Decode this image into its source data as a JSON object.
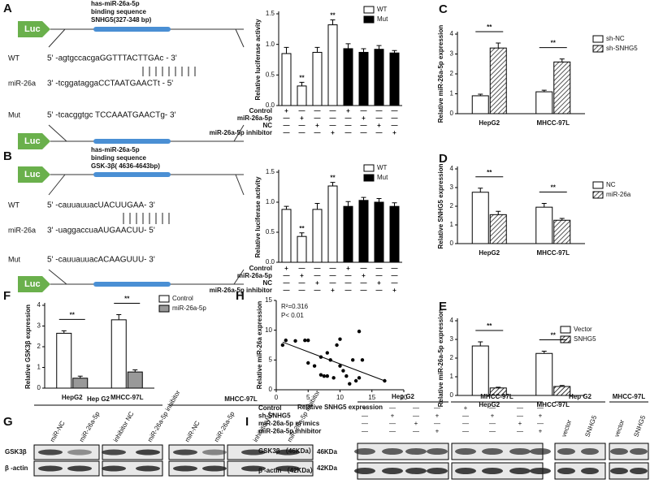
{
  "panel_labels": [
    "A",
    "B",
    "C",
    "D",
    "E",
    "F",
    "G",
    "H",
    "I"
  ],
  "diagrams": [
    {
      "luc": [
        "Luc",
        "Luc"
      ],
      "title_lines": [
        "has-miR-26a-5p",
        "binding sequence",
        "SNHG5(327-348 bp)"
      ],
      "rows": [
        {
          "name": "WT",
          "seq": "5' -agtgccacgaGGTTTACTTGAc - 3'"
        },
        {
          "name": "miR-26a",
          "seq": "3' -tcggataggaCCTAATGAACTt - 5'"
        },
        {
          "name": "Mut",
          "seq": "5' -tcacggtgc TCCAAATGAACTg- 3'"
        }
      ]
    },
    {
      "luc": [
        "Luc",
        "Luc"
      ],
      "title_lines": [
        "has-miR-26a-5p",
        "binding sequence",
        "GSK-3β( 4636-4643bp)"
      ],
      "rows": [
        {
          "name": "WT",
          "seq": "5' -cauuauuacUACUUGAA- 3'"
        },
        {
          "name": "miR-26a",
          "seq": "3' -uaggaccuaAUGAACUU- 5'"
        },
        {
          "name": "Mut",
          "seq": "5' -cauuauuacACAAGUUU- 3'"
        }
      ]
    }
  ],
  "chart_data": [
    {
      "type": "bar",
      "ylabel": "Relative luciferase activity",
      "categories": [
        null,
        null,
        null,
        null,
        null,
        null,
        null,
        null
      ],
      "series": [
        {
          "name": "WT",
          "color": "#ffffff",
          "values": [
            0.85,
            0.32,
            0.87,
            1.32,
            null,
            null,
            null,
            null
          ],
          "errors": [
            0.1,
            0.06,
            0.08,
            0.08,
            null,
            null,
            null,
            null
          ]
        },
        {
          "name": "Mut",
          "color": "#000000",
          "values": [
            null,
            null,
            null,
            null,
            0.93,
            0.87,
            0.92,
            0.86
          ],
          "errors": [
            null,
            null,
            null,
            null,
            0.08,
            0.06,
            0.06,
            0.04
          ]
        }
      ],
      "ylim": [
        0,
        1.5
      ],
      "yticks": [
        {
          "value": 0,
          "label": "0.0"
        },
        {
          "value": 0.5,
          "label": "0.5"
        },
        {
          "value": 1,
          "label": "1.0"
        },
        {
          "value": 1.5,
          "label": "1.5"
        }
      ],
      "annotations": [
        "**",
        "**"
      ],
      "conditions": [
        {
          "name": "Control",
          "signs": [
            "+",
            "—",
            "—",
            "—",
            "+",
            "—",
            "—",
            "—"
          ]
        },
        {
          "name": "miR-26a-5p",
          "signs": [
            "—",
            "+",
            "—",
            "—",
            "—",
            "+",
            "—",
            "—"
          ]
        },
        {
          "name": "NC",
          "signs": [
            "—",
            "—",
            "+",
            "—",
            "—",
            "—",
            "+",
            "—"
          ]
        },
        {
          "name": "miR-26a-5p inhibitor",
          "signs": [
            "—",
            "—",
            "—",
            "+",
            "—",
            "—",
            "—",
            "+"
          ]
        }
      ]
    },
    {
      "type": "bar",
      "ylabel": "Relative luciferase activity",
      "categories": [
        null,
        null,
        null,
        null,
        null,
        null,
        null,
        null
      ],
      "series": [
        {
          "name": "WT",
          "color": "#ffffff",
          "values": [
            0.88,
            0.43,
            0.88,
            1.27,
            null,
            null,
            null,
            null
          ],
          "errors": [
            0.05,
            0.06,
            0.1,
            0.06,
            null,
            null,
            null,
            null
          ]
        },
        {
          "name": "Mut",
          "color": "#000000",
          "values": [
            null,
            null,
            null,
            null,
            0.93,
            1.03,
            1.0,
            0.93
          ],
          "errors": [
            null,
            null,
            null,
            null,
            0.08,
            0.05,
            0.06,
            0.06
          ]
        }
      ],
      "ylim": [
        0,
        1.5
      ],
      "yticks": [
        {
          "value": 0,
          "label": "0.0"
        },
        {
          "value": 0.5,
          "label": "0.5"
        },
        {
          "value": 1,
          "label": "1.0"
        },
        {
          "value": 1.5,
          "label": "1.5"
        }
      ],
      "annotations": [
        "**",
        "**"
      ],
      "conditions": [
        {
          "name": "Control",
          "signs": [
            "+",
            "—",
            "—",
            "—",
            "+",
            "—",
            "—",
            "—"
          ]
        },
        {
          "name": "miR-26a-5p",
          "signs": [
            "—",
            "+",
            "—",
            "—",
            "—",
            "+",
            "—",
            "—"
          ]
        },
        {
          "name": "NC",
          "signs": [
            "—",
            "—",
            "+",
            "—",
            "—",
            "—",
            "+",
            "—"
          ]
        },
        {
          "name": "miR-26a-5p inhibitor",
          "signs": [
            "—",
            "—",
            "—",
            "+",
            "—",
            "—",
            "—",
            "+"
          ]
        }
      ]
    },
    {
      "type": "bar",
      "ylabel": "Relative miR-26a-5p expression",
      "categories": [
        "HepG2",
        "MHCC-97L"
      ],
      "series": [
        {
          "name": "sh-NC",
          "color": "#ffffff",
          "values": [
            0.9,
            1.1
          ],
          "errors": [
            0.08,
            0.08
          ]
        },
        {
          "name": "sh-SNHG5",
          "color": "#555555",
          "hatch": true,
          "values": [
            3.3,
            2.6
          ],
          "errors": [
            0.25,
            0.15
          ]
        }
      ],
      "ylim": [
        0,
        4
      ],
      "yticks": [
        0,
        1,
        2,
        3,
        4
      ],
      "annotations": [
        "**",
        "**"
      ]
    },
    {
      "type": "bar",
      "ylabel": "Relative SNHG5 expression",
      "categories": [
        "HepG2",
        "MHCC-97L"
      ],
      "series": [
        {
          "name": "NC",
          "color": "#ffffff",
          "values": [
            2.75,
            1.95
          ],
          "errors": [
            0.22,
            0.2
          ]
        },
        {
          "name": "miR-26a",
          "color": "#555555",
          "hatch": true,
          "values": [
            1.55,
            1.25
          ],
          "errors": [
            0.18,
            0.1
          ]
        }
      ],
      "ylim": [
        0,
        4
      ],
      "yticks": [
        0,
        1,
        2,
        3,
        4
      ],
      "annotations": [
        "**",
        "**"
      ]
    },
    {
      "type": "bar",
      "ylabel": "Relative miR-26a-5p expression",
      "categories": [
        "HepG2",
        "MHCC-97L"
      ],
      "series": [
        {
          "name": "Vector",
          "color": "#ffffff",
          "values": [
            2.65,
            2.25
          ],
          "errors": [
            0.22,
            0.12
          ]
        },
        {
          "name": "SNHG5",
          "color": "#333333",
          "hatch": true,
          "values": [
            0.4,
            0.48
          ],
          "errors": [
            0.04,
            0.05
          ]
        }
      ],
      "ylim": [
        0,
        4
      ],
      "yticks": [
        0,
        1,
        2,
        3,
        4
      ],
      "annotations": [
        "**",
        "**"
      ]
    },
    {
      "type": "bar",
      "ylabel": "Relative GSK3β expression",
      "categories": [
        "HepG2",
        "MHCC-97L"
      ],
      "series": [
        {
          "name": "Control",
          "color": "#ffffff",
          "values": [
            2.65,
            3.3
          ],
          "errors": [
            0.12,
            0.25
          ]
        },
        {
          "name": "miR-26a-5p",
          "color": "#999999",
          "values": [
            0.48,
            0.78
          ],
          "errors": [
            0.1,
            0.1
          ]
        }
      ],
      "ylim": [
        0,
        4
      ],
      "yticks": [
        0,
        1,
        2,
        3,
        4
      ],
      "annotations": [
        "**",
        "**"
      ]
    },
    {
      "type": "scatter",
      "xlabel": "Relative SNHG5 expression",
      "ylabel": "Relative miR-26a expression",
      "x": [
        1,
        1.5,
        3,
        4.5,
        5,
        5,
        6,
        7,
        7,
        7.5,
        8,
        8,
        8.5,
        9,
        9.5,
        10,
        10,
        10.5,
        11,
        11.5,
        12,
        12.5,
        13,
        13,
        13.5,
        17
      ],
      "values": [
        7.5,
        8.3,
        8.2,
        8.3,
        8.3,
        4.5,
        4,
        5.5,
        2.5,
        2.3,
        2.3,
        6.2,
        5,
        2,
        7.5,
        4,
        8.5,
        3.2,
        2.3,
        1,
        5,
        1.5,
        9.8,
        2,
        5,
        1.5
      ],
      "trend_line": {
        "x": [
          1,
          17
        ],
        "values": [
          8,
          1.5
        ]
      },
      "xlim": [
        0,
        20
      ],
      "xticks": [
        0,
        5,
        10,
        15,
        20
      ],
      "ylim": [
        0,
        15
      ],
      "yticks": [
        0,
        5,
        10,
        15
      ],
      "annotations": [
        "R²=0.316",
        "P< 0.01"
      ]
    }
  ],
  "blot_G": {
    "groups": [
      "Hep G2",
      "MHCC-97L"
    ],
    "lanes": [
      "miR-NC",
      "miR-26a-5p",
      "inhibitor NC",
      "miR-26a-5p inhibitor",
      "miR-NC",
      "miR-26a-5p",
      "inhibitor NC",
      "miR-26a-5p inhibitor"
    ],
    "rows": [
      "GSK3β",
      "β -actin"
    ],
    "sizes": [
      "46KDa",
      "42KDa"
    ]
  },
  "blot_I": {
    "groups": [
      "Hep G2",
      "MHCC-97L"
    ],
    "conditions": [
      {
        "name": "Control",
        "signs": [
          "+",
          "—",
          "—",
          "—",
          "+",
          "—",
          "—",
          "—"
        ]
      },
      {
        "name": "sh-SNHG5",
        "signs": [
          "—",
          "+",
          "—",
          "+",
          "—",
          "+",
          "—",
          "+"
        ]
      },
      {
        "name": "miR-26a-5p m imics",
        "signs": [
          "—",
          "—",
          "+",
          "—",
          "—",
          "—",
          "+",
          "—"
        ]
      },
      {
        "name": "miR-26a-5p inhibitor",
        "signs": [
          "—",
          "—",
          "—",
          "+",
          "—",
          "—",
          "—",
          "+"
        ]
      }
    ],
    "rows": [
      "GSK3β （46KDa）",
      "β -actin （42KDa）"
    ],
    "groups_right": [
      "Hep G2",
      "MHCC-97L"
    ],
    "lanes_right": [
      "vector",
      "SNHG5",
      "vector",
      "SNHG5"
    ]
  }
}
